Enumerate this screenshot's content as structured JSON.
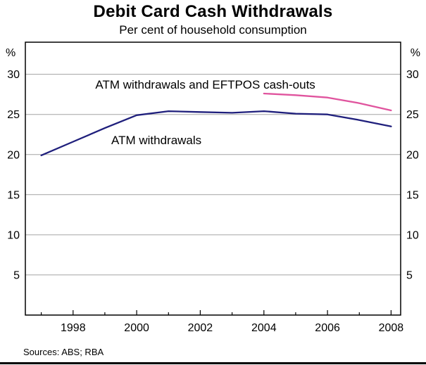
{
  "chart_data": {
    "type": "line",
    "title": "Debit Card Cash Withdrawals",
    "subtitle": "Per cent of household consumption",
    "unit_left": "%",
    "unit_right": "%",
    "sources": "Sources: ABS; RBA",
    "xlim": [
      1996.5,
      2008.3
    ],
    "ylim": [
      0,
      34
    ],
    "xticks": [
      1998,
      2000,
      2002,
      2004,
      2006,
      2008
    ],
    "yticks": [
      5,
      10,
      15,
      20,
      25,
      30
    ],
    "grid": true,
    "colors": {
      "frame": "#000000",
      "grid": "#a3a3a3"
    },
    "series": [
      {
        "name": "ATM withdrawals",
        "color": "#1f1f7c",
        "x": [
          1997,
          1998,
          1999,
          2000,
          2001,
          2002,
          2003,
          2004,
          2005,
          2006,
          2007,
          2008
        ],
        "values": [
          19.9,
          21.6,
          23.3,
          24.9,
          25.4,
          25.3,
          25.2,
          25.4,
          25.1,
          25.0,
          24.3,
          23.5
        ],
        "label": {
          "text": "ATM withdrawals",
          "x": 1999.2,
          "y": 21.3
        }
      },
      {
        "name": "ATM withdrawals and EFTPOS cash-outs",
        "color": "#e0549e",
        "x": [
          2004,
          2005,
          2006,
          2007,
          2008
        ],
        "values": [
          27.6,
          27.4,
          27.1,
          26.4,
          25.5
        ],
        "label": {
          "text": "ATM withdrawals and EFTPOS cash-outs",
          "x": 1998.7,
          "y": 28.2
        }
      }
    ]
  }
}
